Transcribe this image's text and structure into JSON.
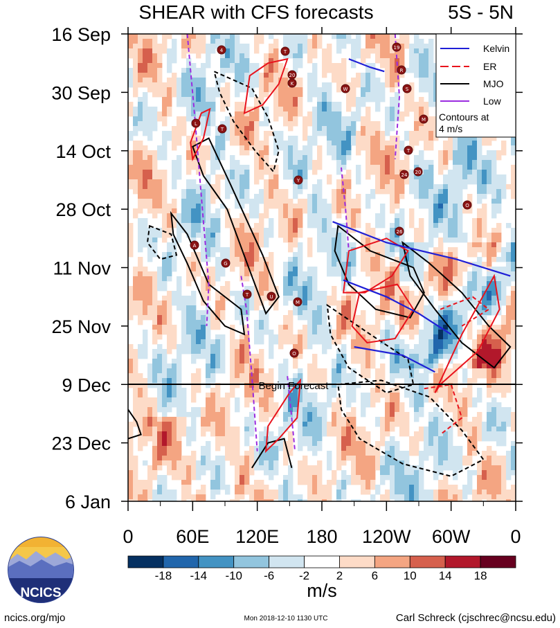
{
  "chart_data": {
    "type": "heatmap",
    "title": "SHEAR with CFS forecasts",
    "region_label": "5S - 5N",
    "y_ticks": [
      "16 Sep",
      "30 Sep",
      "14 Oct",
      "28 Oct",
      "11 Nov",
      "25 Nov",
      "9 Dec",
      "23 Dec",
      "6 Jan"
    ],
    "x_ticks": [
      "0",
      "60E",
      "120E",
      "180",
      "120W",
      "60W",
      "0"
    ],
    "x_range": [
      0,
      360
    ],
    "forecast_line_label": "Begin Forecast",
    "forecast_start": "9 Dec",
    "colorbar": {
      "units": "m/s",
      "tick_labels": [
        "-18",
        "-14",
        "-10",
        "-6",
        "-2",
        "2",
        "6",
        "10",
        "14",
        "18"
      ],
      "colors": [
        "#053061",
        "#2166ac",
        "#4393c3",
        "#92c5de",
        "#d1e5f0",
        "#ffffff",
        "#fddbc7",
        "#f4a582",
        "#d6604d",
        "#b2182b",
        "#67001f"
      ]
    },
    "legend": {
      "placement": "top-right",
      "entries": [
        {
          "name": "Kelvin",
          "color": "#1f1fd6",
          "dash": "solid"
        },
        {
          "name": "ER",
          "color": "#e8121c",
          "dash": "dash"
        },
        {
          "name": "MJO",
          "color": "#000000",
          "dash": "solid"
        },
        {
          "name": "Low",
          "color": "#9a2be0",
          "dash": "solid"
        }
      ],
      "note": "Contours at\n4 m/s"
    },
    "storms": [
      "4",
      "T",
      "20",
      "K",
      "W",
      "19",
      "R",
      "S",
      "M",
      "L",
      "T",
      "T",
      "Y",
      "24",
      "20",
      "O",
      "26",
      "A",
      "G",
      "T",
      "U",
      "M",
      "O"
    ],
    "contours": [
      {
        "type": "MJO",
        "sign": "pos",
        "points": [
          [
            60,
            27
          ],
          [
            75,
            25
          ],
          [
            95,
            36
          ],
          [
            125,
            53
          ],
          [
            140,
            63
          ],
          [
            128,
            67
          ],
          [
            112,
            56
          ],
          [
            92,
            42
          ],
          [
            70,
            34
          ]
        ]
      },
      {
        "type": "MJO",
        "sign": "neg",
        "points": [
          [
            80,
            9
          ],
          [
            115,
            13
          ],
          [
            130,
            20
          ],
          [
            140,
            28
          ],
          [
            135,
            33
          ],
          [
            118,
            28
          ],
          [
            98,
            21
          ],
          [
            85,
            14
          ]
        ]
      },
      {
        "type": "MJO",
        "sign": "pos",
        "points": [
          [
            40,
            43
          ],
          [
            55,
            48
          ],
          [
            75,
            60
          ],
          [
            105,
            66
          ],
          [
            108,
            72
          ],
          [
            90,
            70
          ],
          [
            70,
            64
          ],
          [
            55,
            55
          ],
          [
            42,
            48
          ]
        ]
      },
      {
        "type": "MJO",
        "sign": "neg",
        "points": [
          [
            20,
            46
          ],
          [
            40,
            48
          ],
          [
            45,
            53
          ],
          [
            30,
            54
          ],
          [
            18,
            50
          ]
        ]
      },
      {
        "type": "MJO",
        "sign": "pos",
        "points": [
          [
            195,
            46
          ],
          [
            225,
            52
          ],
          [
            265,
            56
          ],
          [
            275,
            62
          ],
          [
            262,
            68
          ],
          [
            230,
            66
          ],
          [
            205,
            60
          ],
          [
            192,
            52
          ]
        ]
      },
      {
        "type": "MJO",
        "sign": "pos",
        "points": [
          [
            255,
            50
          ],
          [
            280,
            55
          ],
          [
            310,
            62
          ],
          [
            335,
            70
          ],
          [
            355,
            75
          ],
          [
            340,
            80
          ],
          [
            310,
            74
          ],
          [
            285,
            66
          ],
          [
            262,
            58
          ]
        ]
      },
      {
        "type": "MJO",
        "sign": "neg",
        "points": [
          [
            185,
            65
          ],
          [
            225,
            72
          ],
          [
            260,
            78
          ],
          [
            265,
            84
          ],
          [
            240,
            86
          ],
          [
            205,
            80
          ],
          [
            188,
            72
          ]
        ]
      },
      {
        "type": "MJO",
        "sign": "neg",
        "points": [
          [
            195,
            84
          ],
          [
            235,
            83
          ],
          [
            280,
            87
          ],
          [
            310,
            95
          ],
          [
            330,
            102
          ],
          [
            300,
            106
          ],
          [
            255,
            103
          ],
          [
            215,
            97
          ],
          [
            198,
            90
          ]
        ]
      },
      {
        "type": "MJO",
        "sign": "pos",
        "points": [
          [
            115,
            104
          ],
          [
            130,
            98
          ],
          [
            145,
            97
          ],
          [
            152,
            104
          ]
        ]
      },
      {
        "type": "MJO",
        "sign": "pos",
        "points": [
          [
            0,
            90
          ],
          [
            8,
            93
          ],
          [
            12,
            96
          ],
          [
            0,
            97
          ]
        ]
      },
      {
        "type": "ER",
        "sign": "pos",
        "points": [
          [
            113,
            10
          ],
          [
            130,
            7
          ],
          [
            148,
            6
          ],
          [
            140,
            12
          ],
          [
            125,
            17
          ],
          [
            108,
            19
          ]
        ]
      },
      {
        "type": "ER",
        "sign": "pos",
        "points": [
          [
            58,
            26
          ],
          [
            68,
            19
          ],
          [
            76,
            18
          ],
          [
            70,
            25
          ],
          [
            60,
            30
          ]
        ]
      },
      {
        "type": "ER",
        "sign": "pos",
        "points": [
          [
            205,
            52
          ],
          [
            240,
            49
          ],
          [
            260,
            52
          ],
          [
            245,
            58
          ],
          [
            220,
            62
          ],
          [
            200,
            62
          ]
        ]
      },
      {
        "type": "ER",
        "sign": "pos",
        "points": [
          [
            215,
            62
          ],
          [
            250,
            60
          ],
          [
            265,
            66
          ],
          [
            248,
            73
          ],
          [
            222,
            74
          ],
          [
            208,
            70
          ]
        ]
      },
      {
        "type": "ER",
        "sign": "pos",
        "points": [
          [
            290,
            84
          ],
          [
            325,
            76
          ],
          [
            345,
            66
          ],
          [
            340,
            58
          ],
          [
            310,
            72
          ],
          [
            285,
            86
          ]
        ]
      },
      {
        "type": "ER",
        "sign": "pos",
        "points": [
          [
            130,
            94
          ],
          [
            150,
            86
          ],
          [
            160,
            83
          ],
          [
            157,
            92
          ],
          [
            140,
            97
          ],
          [
            128,
            100
          ]
        ]
      },
      {
        "type": "ER",
        "sign": "neg",
        "points": [
          [
            290,
            66
          ],
          [
            320,
            63
          ],
          [
            335,
            66
          ],
          [
            310,
            70
          ]
        ]
      },
      {
        "type": "ER",
        "sign": "neg",
        "points": [
          [
            275,
            85
          ],
          [
            300,
            84
          ],
          [
            310,
            92
          ],
          [
            290,
            96
          ]
        ]
      },
      {
        "type": "Kelvin",
        "sign": "pos",
        "points": [
          [
            190,
            45
          ],
          [
            240,
            50
          ],
          [
            305,
            54
          ],
          [
            355,
            58
          ]
        ]
      },
      {
        "type": "Kelvin",
        "sign": "pos",
        "points": [
          [
            200,
            59
          ],
          [
            240,
            63
          ],
          [
            270,
            67
          ],
          [
            300,
            72
          ]
        ]
      },
      {
        "type": "Kelvin",
        "sign": "pos",
        "points": [
          [
            210,
            75
          ],
          [
            255,
            77
          ],
          [
            285,
            81
          ]
        ]
      },
      {
        "type": "Kelvin",
        "sign": "pos",
        "points": [
          [
            205,
            6
          ],
          [
            225,
            8
          ],
          [
            238,
            9
          ]
        ]
      },
      {
        "type": "Low",
        "sign": "pos",
        "points": [
          [
            55,
            0
          ],
          [
            62,
            20
          ],
          [
            70,
            45
          ],
          [
            75,
            60
          ],
          [
            73,
            70
          ]
        ]
      },
      {
        "type": "Low",
        "sign": "pos",
        "points": [
          [
            105,
            58
          ],
          [
            110,
            66
          ],
          [
            115,
            82
          ],
          [
            120,
            100
          ]
        ]
      },
      {
        "type": "Low",
        "sign": "pos",
        "points": [
          [
            148,
            82
          ],
          [
            152,
            92
          ],
          [
            155,
            100
          ]
        ]
      },
      {
        "type": "Low",
        "sign": "pos",
        "points": [
          [
            198,
            32
          ],
          [
            202,
            42
          ],
          [
            205,
            52
          ]
        ]
      },
      {
        "type": "Low",
        "sign": "pos",
        "points": [
          [
            248,
            0
          ],
          [
            252,
            15
          ],
          [
            248,
            30
          ]
        ]
      }
    ]
  },
  "footer": {
    "left": "ncics.org/mjo",
    "center": "Mon 2018-12-10 1130 UTC",
    "right": "Carl Schreck (cjschrec@ncsu.edu)"
  },
  "logo": {
    "text": "NCICS"
  }
}
